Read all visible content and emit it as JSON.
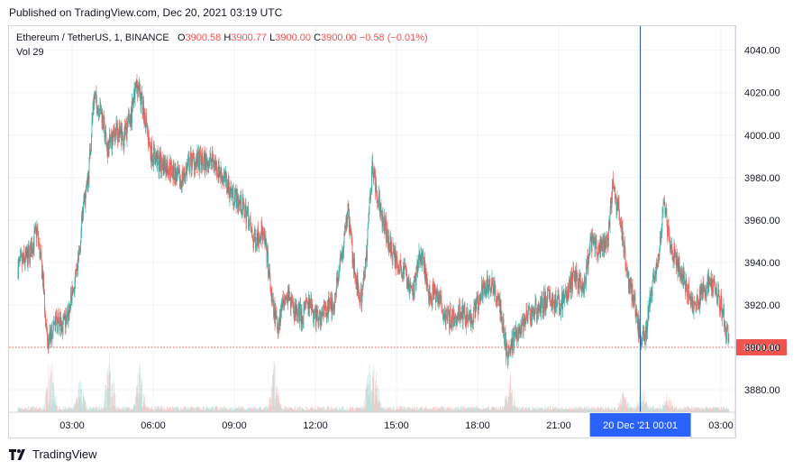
{
  "header": {
    "published": "Published on TradingView.com, Dec 20, 2021 03:19 UTC"
  },
  "legend": {
    "symbol": "Ethereum / TetherUS, 1, BINANCE",
    "o_label": "O",
    "o_value": "3900.58",
    "h_label": "H",
    "h_value": "3900.77",
    "l_label": "L",
    "l_value": "3900.00",
    "c_label": "C",
    "c_value": "3900.00",
    "change": "−0.58 (−0.01%)",
    "vol_label": "Vol",
    "vol_value": "29"
  },
  "crosshair_label": "20 Dec '21   00:01",
  "last_price_label": "3900.00",
  "footer": {
    "brand": "TradingView"
  },
  "colors": {
    "up": "#26a69a",
    "down": "#ef5350",
    "crosshair": "#2962ff",
    "grid": "#f0f3fa"
  },
  "chart_data": {
    "type": "candlestick",
    "symbol": "Ethereum / TetherUS",
    "interval": "1",
    "exchange": "BINANCE",
    "x_tick_labels": [
      "03:00",
      "06:00",
      "09:00",
      "12:00",
      "15:00",
      "18:00",
      "21:00",
      "20 Dec '21",
      "03:00"
    ],
    "x_ticks": [
      {
        "label": "03:00",
        "hour": 3
      },
      {
        "label": "06:00",
        "hour": 6
      },
      {
        "label": "09:00",
        "hour": 9
      },
      {
        "label": "12:00",
        "hour": 12
      },
      {
        "label": "15:00",
        "hour": 15
      },
      {
        "label": "18:00",
        "hour": 18
      },
      {
        "label": "21:00",
        "hour": 21
      },
      {
        "label": "03:00",
        "hour": 27
      }
    ],
    "y_tick_labels": [
      "3880.00",
      "3900.00",
      "3920.00",
      "3940.00",
      "3960.00",
      "3980.00",
      "4000.00",
      "4020.00",
      "4040.00"
    ],
    "y_ticks": [
      3880,
      3900,
      3920,
      3940,
      3960,
      3980,
      4000,
      4020,
      4040
    ],
    "ylim": [
      3870,
      4045
    ],
    "crosshair_hour": 24.02,
    "last_price": 3900.0,
    "hour_range": [
      1.0,
      27.3
    ],
    "price_path": [
      [
        1.0,
        3938
      ],
      [
        1.4,
        3943
      ],
      [
        1.7,
        3955
      ],
      [
        1.9,
        3935
      ],
      [
        2.1,
        3900
      ],
      [
        2.3,
        3910
      ],
      [
        2.5,
        3912
      ],
      [
        2.8,
        3912
      ],
      [
        3.0,
        3925
      ],
      [
        3.2,
        3935
      ],
      [
        3.4,
        3965
      ],
      [
        3.6,
        3980
      ],
      [
        3.8,
        4018
      ],
      [
        4.1,
        4010
      ],
      [
        4.3,
        3993
      ],
      [
        4.6,
        4002
      ],
      [
        4.9,
        3998
      ],
      [
        5.2,
        4010
      ],
      [
        5.4,
        4025
      ],
      [
        5.6,
        4015
      ],
      [
        5.9,
        3993
      ],
      [
        6.2,
        3987
      ],
      [
        6.6,
        3985
      ],
      [
        7.0,
        3978
      ],
      [
        7.4,
        3988
      ],
      [
        7.8,
        3987
      ],
      [
        8.2,
        3988
      ],
      [
        8.6,
        3980
      ],
      [
        8.9,
        3973
      ],
      [
        9.2,
        3968
      ],
      [
        9.5,
        3962
      ],
      [
        9.7,
        3950
      ],
      [
        10.0,
        3955
      ],
      [
        10.2,
        3945
      ],
      [
        10.4,
        3920
      ],
      [
        10.6,
        3910
      ],
      [
        10.9,
        3927
      ],
      [
        11.2,
        3918
      ],
      [
        11.5,
        3915
      ],
      [
        11.8,
        3920
      ],
      [
        12.1,
        3913
      ],
      [
        12.4,
        3918
      ],
      [
        12.7,
        3922
      ],
      [
        13.0,
        3945
      ],
      [
        13.2,
        3965
      ],
      [
        13.4,
        3940
      ],
      [
        13.7,
        3922
      ],
      [
        13.9,
        3945
      ],
      [
        14.1,
        3985
      ],
      [
        14.4,
        3965
      ],
      [
        14.7,
        3950
      ],
      [
        15.0,
        3940
      ],
      [
        15.3,
        3935
      ],
      [
        15.6,
        3925
      ],
      [
        15.9,
        3945
      ],
      [
        16.2,
        3925
      ],
      [
        16.5,
        3925
      ],
      [
        16.8,
        3915
      ],
      [
        17.1,
        3913
      ],
      [
        17.4,
        3917
      ],
      [
        17.7,
        3912
      ],
      [
        18.0,
        3920
      ],
      [
        18.3,
        3930
      ],
      [
        18.6,
        3928
      ],
      [
        18.9,
        3915
      ],
      [
        19.1,
        3895
      ],
      [
        19.3,
        3903
      ],
      [
        19.6,
        3910
      ],
      [
        19.9,
        3915
      ],
      [
        20.2,
        3918
      ],
      [
        20.6,
        3923
      ],
      [
        21.0,
        3920
      ],
      [
        21.3,
        3925
      ],
      [
        21.6,
        3935
      ],
      [
        21.9,
        3925
      ],
      [
        22.2,
        3950
      ],
      [
        22.5,
        3945
      ],
      [
        22.8,
        3950
      ],
      [
        23.0,
        3975
      ],
      [
        23.2,
        3965
      ],
      [
        23.4,
        3950
      ],
      [
        23.6,
        3930
      ],
      [
        23.8,
        3922
      ],
      [
        24.0,
        3905
      ],
      [
        24.2,
        3905
      ],
      [
        24.4,
        3925
      ],
      [
        24.6,
        3935
      ],
      [
        24.8,
        3955
      ],
      [
        24.9,
        3970
      ],
      [
        25.1,
        3950
      ],
      [
        25.4,
        3940
      ],
      [
        25.7,
        3930
      ],
      [
        26.0,
        3920
      ],
      [
        26.3,
        3925
      ],
      [
        26.6,
        3930
      ],
      [
        26.9,
        3925
      ],
      [
        27.1,
        3915
      ],
      [
        27.3,
        3900
      ]
    ],
    "volume_spikes": [
      [
        2.2,
        0.75
      ],
      [
        3.3,
        0.4
      ],
      [
        4.4,
        0.95
      ],
      [
        5.5,
        0.6
      ],
      [
        10.5,
        0.7
      ],
      [
        14.0,
        0.55
      ],
      [
        14.2,
        0.6
      ],
      [
        19.2,
        0.45
      ],
      [
        23.4,
        0.25
      ],
      [
        24.1,
        0.3
      ],
      [
        25.0,
        0.25
      ]
    ]
  }
}
